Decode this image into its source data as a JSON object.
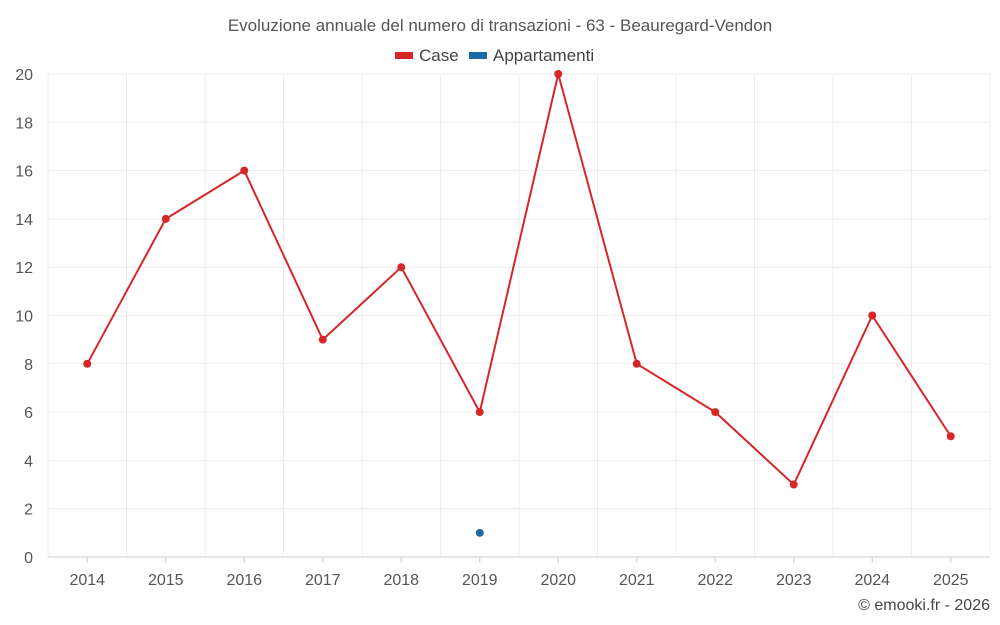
{
  "chart_data": {
    "type": "line",
    "title": "Evoluzione annuale del numero di transazioni - 63 - Beauregard-Vendon",
    "categories": [
      "2014",
      "2015",
      "2016",
      "2017",
      "2018",
      "2019",
      "2020",
      "2021",
      "2022",
      "2023",
      "2024",
      "2025"
    ],
    "series": [
      {
        "name": "Case",
        "color": "#d62728",
        "values": [
          8,
          14,
          16,
          9,
          12,
          6,
          20,
          8,
          6,
          3,
          10,
          5
        ]
      },
      {
        "name": "Appartamenti",
        "color": "#1a6aa8",
        "values": [
          null,
          null,
          null,
          null,
          null,
          1,
          null,
          null,
          null,
          null,
          null,
          null
        ]
      }
    ],
    "ylim": [
      0,
      20
    ],
    "yticks": [
      0,
      2,
      4,
      6,
      8,
      10,
      12,
      14,
      16,
      18,
      20
    ],
    "grid": true,
    "legend_position": "top-center"
  },
  "credit": "© emooki.fr - 2026"
}
